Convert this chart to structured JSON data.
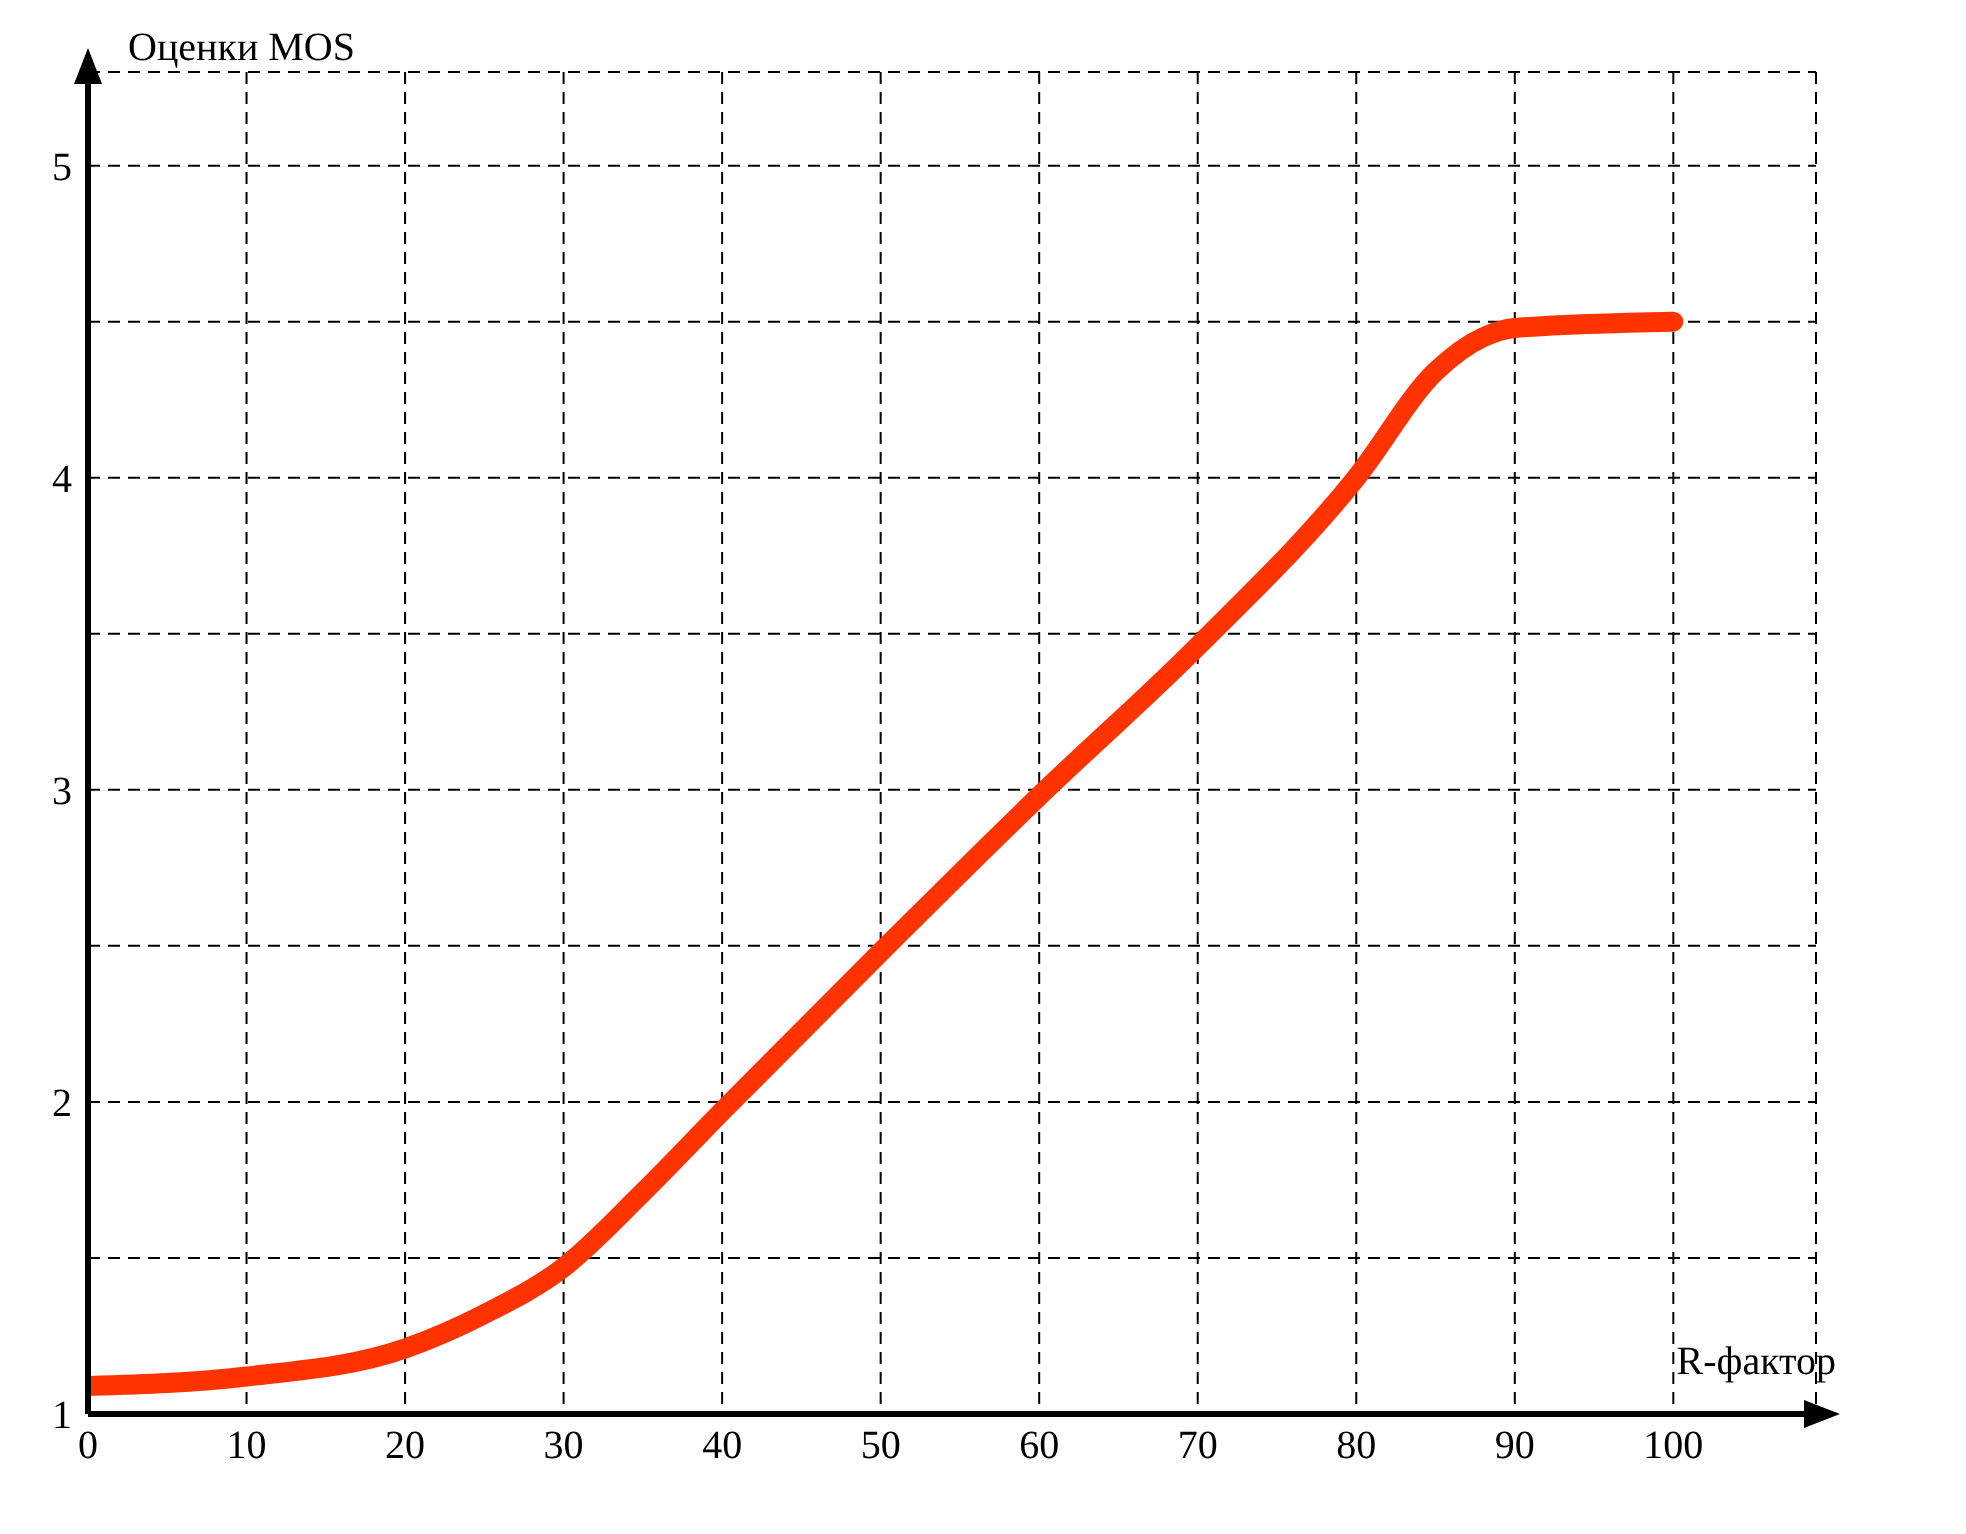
{
  "chart_data": {
    "type": "line",
    "xlabel": "R-фактор",
    "ylabel": "Оценки MOS",
    "x": [
      0,
      10,
      20,
      25,
      30,
      35,
      40,
      50,
      60,
      70,
      80,
      85,
      88,
      90,
      100
    ],
    "series": [
      {
        "color": "#ff3300",
        "values": [
          1.09,
          1.12,
          1.21,
          1.32,
          1.47,
          1.71,
          1.97,
          2.48,
          2.98,
          3.46,
          4.0,
          4.34,
          4.45,
          4.48,
          4.5
        ]
      }
    ],
    "xlim": [
      0,
      109
    ],
    "xticks": [
      0,
      10,
      20,
      30,
      40,
      50,
      60,
      70,
      80,
      90,
      100
    ],
    "ylim": [
      1,
      5.3
    ],
    "yticks": [
      1,
      {
        "value": 1.5,
        "label": null
      },
      2,
      {
        "value": 2.5,
        "label": null
      },
      3,
      {
        "value": 3.5,
        "label": null
      },
      4,
      {
        "value": 4.5,
        "label": null
      },
      5
    ],
    "grid": true,
    "line_style": "solid",
    "marker": "none",
    "legend": false
  }
}
